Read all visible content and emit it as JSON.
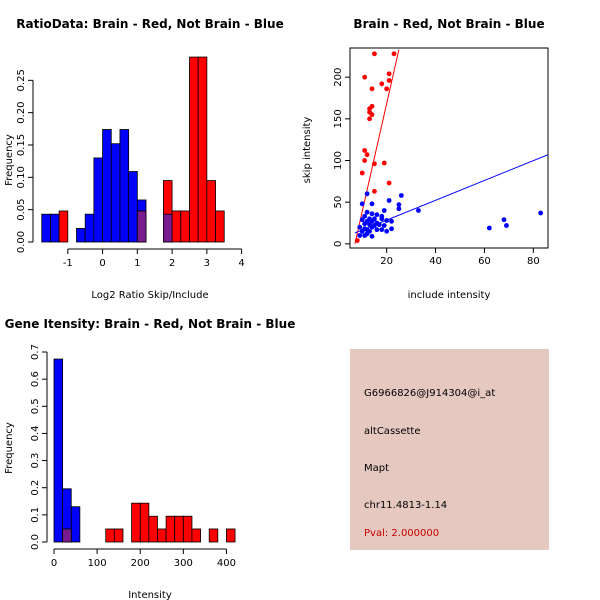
{
  "chart_data": [
    {
      "id": "ratio-hist",
      "type": "bar",
      "title": "RatioData: Brain - Red, Not Brain - Blue",
      "xlabel": "Log2 Ratio Skip/Include",
      "ylabel": "Frequency",
      "xlim": [
        -1.8,
        4.5
      ],
      "ylim": [
        0,
        0.3
      ],
      "xticks": [
        -1,
        0,
        1,
        2,
        3,
        4
      ],
      "yticks": [
        0,
        0.05,
        0.1,
        0.15,
        0.2,
        0.25
      ],
      "ytick_labels": [
        "0.00",
        "0.05",
        "0.10",
        "0.15",
        "0.20",
        "0.25"
      ],
      "series": [
        {
          "name": "Not Brain",
          "color": "#0000ff",
          "bins": [
            {
              "x0": -1.75,
              "x1": -1.5,
              "value": 0.043
            },
            {
              "x0": -1.5,
              "x1": -1.25,
              "value": 0.043
            },
            {
              "x0": -0.75,
              "x1": -0.5,
              "value": 0.021
            },
            {
              "x0": -0.5,
              "x1": -0.25,
              "value": 0.043
            },
            {
              "x0": -0.25,
              "x1": 0.0,
              "value": 0.13
            },
            {
              "x0": 0.0,
              "x1": 0.25,
              "value": 0.174
            },
            {
              "x0": 0.25,
              "x1": 0.5,
              "value": 0.152
            },
            {
              "x0": 0.5,
              "x1": 0.75,
              "value": 0.174
            },
            {
              "x0": 0.75,
              "x1": 1.0,
              "value": 0.109
            },
            {
              "x0": 1.0,
              "x1": 1.25,
              "value": 0.065
            },
            {
              "x0": 1.75,
              "x1": 2.0,
              "value": 0.043
            }
          ]
        },
        {
          "name": "Brain",
          "color": "#ff0000",
          "bins": [
            {
              "x0": -1.25,
              "x1": -1.0,
              "value": 0.048
            },
            {
              "x0": 1.0,
              "x1": 1.25,
              "value": 0.048
            },
            {
              "x0": 1.75,
              "x1": 2.0,
              "value": 0.095
            },
            {
              "x0": 2.0,
              "x1": 2.25,
              "value": 0.048
            },
            {
              "x0": 2.25,
              "x1": 2.5,
              "value": 0.048
            },
            {
              "x0": 2.5,
              "x1": 2.75,
              "value": 0.286
            },
            {
              "x0": 2.75,
              "x1": 3.0,
              "value": 0.286
            },
            {
              "x0": 3.0,
              "x1": 3.25,
              "value": 0.095
            },
            {
              "x0": 3.25,
              "x1": 3.5,
              "value": 0.048
            }
          ]
        }
      ],
      "overlap_color": "#7a1a90"
    },
    {
      "id": "scatter-skip-include",
      "type": "scatter",
      "title": "Brain - Red, Not Brain - Blue",
      "xlabel": "include intensity",
      "ylabel": "skip intensity",
      "xlim": [
        5,
        86
      ],
      "ylim": [
        -5,
        235
      ],
      "xticks": [
        20,
        40,
        60,
        80
      ],
      "yticks": [
        0,
        50,
        100,
        150,
        200
      ],
      "series": [
        {
          "name": "Brain",
          "color": "#ff0000",
          "points": [
            [
              15,
              228
            ],
            [
              23,
              228
            ],
            [
              21,
              204
            ],
            [
              11,
              200
            ],
            [
              21,
              196
            ],
            [
              18,
              192
            ],
            [
              20,
              186
            ],
            [
              14,
              186
            ],
            [
              14,
              165
            ],
            [
              13,
              162
            ],
            [
              13,
              158
            ],
            [
              14,
              155
            ],
            [
              13,
              150
            ],
            [
              11,
              112
            ],
            [
              12,
              107
            ],
            [
              11,
              100
            ],
            [
              19,
              97
            ],
            [
              15,
              96
            ],
            [
              10,
              85
            ],
            [
              21,
              73
            ],
            [
              15,
              63
            ],
            [
              8,
              4
            ]
          ],
          "fit": [
            [
              7,
              0
            ],
            [
              25,
              233
            ]
          ]
        },
        {
          "name": "Not Brain",
          "color": "#0000ff",
          "points": [
            [
              12,
              60
            ],
            [
              14,
              48
            ],
            [
              26,
              58
            ],
            [
              10,
              48
            ],
            [
              21,
              52
            ],
            [
              25,
              47
            ],
            [
              25,
              42
            ],
            [
              33,
              40
            ],
            [
              19,
              40
            ],
            [
              12,
              38
            ],
            [
              14,
              36
            ],
            [
              16,
              35
            ],
            [
              11,
              33
            ],
            [
              18,
              33
            ],
            [
              13,
              30
            ],
            [
              15,
              30
            ],
            [
              10,
              29
            ],
            [
              18,
              30
            ],
            [
              12,
              27
            ],
            [
              14,
              27
            ],
            [
              20,
              28
            ],
            [
              16,
              25
            ],
            [
              22,
              27
            ],
            [
              11,
              24
            ],
            [
              13,
              23
            ],
            [
              17,
              23
            ],
            [
              15,
              22
            ],
            [
              19,
              22
            ],
            [
              9,
              20
            ],
            [
              14,
              20
            ],
            [
              11,
              18
            ],
            [
              12,
              17
            ],
            [
              16,
              17
            ],
            [
              18,
              17
            ],
            [
              10,
              15
            ],
            [
              13,
              15
            ],
            [
              20,
              15
            ],
            [
              22,
              18
            ],
            [
              12,
              12
            ],
            [
              9,
              10
            ],
            [
              11,
              10
            ],
            [
              14,
              9
            ],
            [
              68,
              29
            ],
            [
              69,
              22
            ],
            [
              62,
              19
            ],
            [
              83,
              37
            ]
          ],
          "fit": [
            [
              7,
              13
            ],
            [
              86,
              107
            ]
          ]
        }
      ]
    },
    {
      "id": "intensity-hist",
      "type": "bar",
      "title": "Gene Itensity: Brain - Red, Not Brain - Blue",
      "xlabel": "Intensity",
      "ylabel": "Frequency",
      "xlim": [
        0,
        450
      ],
      "ylim": [
        0,
        0.7
      ],
      "xticks": [
        0,
        100,
        200,
        300,
        400
      ],
      "yticks": [
        0,
        0.1,
        0.2,
        0.3,
        0.4,
        0.5,
        0.6,
        0.7
      ],
      "ytick_labels": [
        "0.0",
        "0.1",
        "0.2",
        "0.3",
        "0.4",
        "0.5",
        "0.6",
        "0.7"
      ],
      "series": [
        {
          "name": "Not Brain",
          "color": "#0000ff",
          "bins": [
            {
              "x0": 0,
              "x1": 20,
              "value": 0.674
            },
            {
              "x0": 20,
              "x1": 40,
              "value": 0.196
            },
            {
              "x0": 40,
              "x1": 60,
              "value": 0.13
            }
          ]
        },
        {
          "name": "Brain",
          "color": "#ff0000",
          "bins": [
            {
              "x0": 20,
              "x1": 40,
              "value": 0.048
            },
            {
              "x0": 120,
              "x1": 140,
              "value": 0.048
            },
            {
              "x0": 140,
              "x1": 160,
              "value": 0.048
            },
            {
              "x0": 180,
              "x1": 200,
              "value": 0.143
            },
            {
              "x0": 200,
              "x1": 220,
              "value": 0.143
            },
            {
              "x0": 220,
              "x1": 240,
              "value": 0.095
            },
            {
              "x0": 240,
              "x1": 260,
              "value": 0.048
            },
            {
              "x0": 260,
              "x1": 280,
              "value": 0.095
            },
            {
              "x0": 280,
              "x1": 300,
              "value": 0.095
            },
            {
              "x0": 300,
              "x1": 320,
              "value": 0.095
            },
            {
              "x0": 320,
              "x1": 340,
              "value": 0.048
            },
            {
              "x0": 360,
              "x1": 380,
              "value": 0.048
            },
            {
              "x0": 400,
              "x1": 420,
              "value": 0.048
            }
          ]
        }
      ],
      "overlap_color": "#7a1a90"
    }
  ],
  "info_panel": {
    "background": "#e5c8c0",
    "probe_id": "G6966826@J914304@i_at",
    "event_type": "altCassette",
    "gene": "Mapt",
    "location": "chr11.4813-1.14",
    "pval": "Pval: 2.000000",
    "pval_color": "#cc0000"
  }
}
